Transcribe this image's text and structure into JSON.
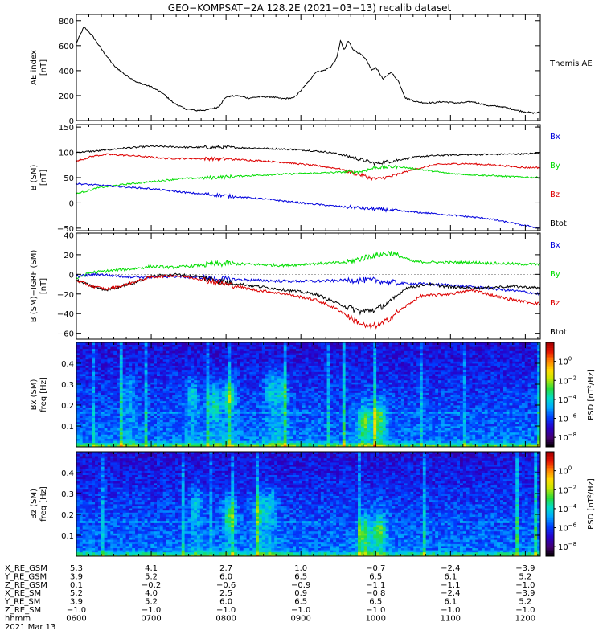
{
  "title": "GEO−KOMPSAT−2A 128.2E (2021−03−13) recalib dataset",
  "colors": {
    "bx": "#0000dd",
    "by": "#00dd00",
    "bz": "#dd0000",
    "btot": "#000000"
  },
  "chart_data": [
    {
      "type": "line",
      "ylabel_lines": [
        "AE index",
        "[nT]"
      ],
      "ylim": [
        0,
        850
      ],
      "yticks": [
        0,
        200,
        400,
        600,
        800
      ],
      "xlim": [
        6.0,
        12.2
      ],
      "legend": [
        {
          "label": "Themis AE",
          "color": "#000000"
        }
      ],
      "series": [
        {
          "name": "Themis AE",
          "color": "#000000",
          "x": [
            6.0,
            6.1,
            6.2,
            6.35,
            6.5,
            6.65,
            6.8,
            7.0,
            7.15,
            7.3,
            7.45,
            7.6,
            7.75,
            7.9,
            8.0,
            8.15,
            8.3,
            8.45,
            8.6,
            8.75,
            8.9,
            9.0,
            9.1,
            9.2,
            9.3,
            9.4,
            9.48,
            9.53,
            9.58,
            9.63,
            9.7,
            9.8,
            9.88,
            9.95,
            10.0,
            10.1,
            10.2,
            10.3,
            10.4,
            10.55,
            10.7,
            10.9,
            11.1,
            11.3,
            11.5,
            11.7,
            11.9,
            12.1,
            12.2
          ],
          "y": [
            620,
            750,
            690,
            560,
            440,
            370,
            310,
            270,
            220,
            140,
            95,
            80,
            85,
            110,
            190,
            200,
            180,
            190,
            190,
            175,
            180,
            240,
            310,
            390,
            400,
            430,
            500,
            640,
            560,
            640,
            570,
            530,
            480,
            400,
            430,
            330,
            390,
            320,
            180,
            150,
            140,
            150,
            140,
            150,
            120,
            110,
            80,
            60,
            65
          ]
        }
      ]
    },
    {
      "type": "line",
      "ylabel_lines": [
        "B (SM)",
        "[nT]"
      ],
      "ylim": [
        -55,
        155
      ],
      "yticks": [
        -50,
        0,
        50,
        100,
        150
      ],
      "xlim": [
        6.0,
        12.2
      ],
      "legend": [
        {
          "label": "Bx",
          "color": "#0000dd"
        },
        {
          "label": "By",
          "color": "#00dd00"
        },
        {
          "label": "Bz",
          "color": "#dd0000"
        },
        {
          "label": "Btot",
          "color": "#000000"
        }
      ],
      "series": [
        {
          "name": "Btot",
          "color": "#000000",
          "x": [
            6.0,
            6.3,
            6.6,
            7.0,
            7.5,
            8.0,
            8.5,
            9.0,
            9.4,
            9.7,
            10.0,
            10.3,
            10.6,
            11.0,
            11.5,
            12.0,
            12.2
          ],
          "y": [
            100,
            103,
            108,
            112,
            110,
            110,
            108,
            105,
            100,
            90,
            78,
            85,
            92,
            95,
            96,
            97,
            99
          ]
        },
        {
          "name": "Bz",
          "color": "#dd0000",
          "x": [
            6.0,
            6.2,
            6.4,
            6.8,
            7.2,
            7.6,
            8.0,
            8.4,
            8.8,
            9.2,
            9.5,
            9.8,
            10.0,
            10.2,
            10.5,
            10.8,
            11.2,
            11.6,
            12.0,
            12.2
          ],
          "y": [
            82,
            92,
            96,
            93,
            88,
            88,
            87,
            84,
            80,
            74,
            68,
            55,
            47,
            52,
            66,
            76,
            78,
            75,
            70,
            70
          ]
        },
        {
          "name": "By",
          "color": "#00dd00",
          "x": [
            6.0,
            6.3,
            6.6,
            7.0,
            7.4,
            7.8,
            8.2,
            8.6,
            9.0,
            9.4,
            9.8,
            10.0,
            10.3,
            10.6,
            11.0,
            11.4,
            11.8,
            12.2
          ],
          "y": [
            18,
            30,
            36,
            42,
            48,
            50,
            53,
            56,
            58,
            60,
            62,
            70,
            72,
            66,
            58,
            55,
            52,
            50
          ]
        },
        {
          "name": "Bx",
          "color": "#0000dd",
          "x": [
            6.0,
            6.5,
            7.0,
            7.5,
            8.0,
            8.5,
            9.0,
            9.5,
            10.0,
            10.5,
            11.0,
            11.5,
            12.0,
            12.2
          ],
          "y": [
            38,
            33,
            28,
            20,
            14,
            8,
            0,
            -7,
            -12,
            -18,
            -24,
            -31,
            -45,
            -50
          ]
        }
      ]
    },
    {
      "type": "line",
      "ylabel_lines": [
        "B (SM)−IGRF (SM)",
        "[nT]"
      ],
      "ylim": [
        -66,
        42
      ],
      "yticks": [
        -60,
        -40,
        -20,
        0,
        20,
        40
      ],
      "xlim": [
        6.0,
        12.2
      ],
      "legend": [
        {
          "label": "Bx",
          "color": "#0000dd"
        },
        {
          "label": "By",
          "color": "#00dd00"
        },
        {
          "label": "Bz",
          "color": "#dd0000"
        },
        {
          "label": "Btot",
          "color": "#000000"
        }
      ],
      "series": [
        {
          "name": "By",
          "color": "#00dd00",
          "x": [
            6.0,
            6.2,
            6.5,
            6.8,
            7.0,
            7.3,
            7.6,
            8.0,
            8.4,
            8.8,
            9.2,
            9.6,
            9.9,
            10.2,
            10.5,
            10.9,
            11.3,
            11.7,
            12.2
          ],
          "y": [
            -4,
            2,
            4,
            6,
            8,
            7,
            9,
            11,
            10,
            9,
            11,
            12,
            18,
            22,
            13,
            12,
            12,
            11,
            10
          ]
        },
        {
          "name": "Bx",
          "color": "#0000dd",
          "x": [
            6.0,
            6.3,
            6.6,
            7.0,
            7.3,
            7.6,
            8.0,
            8.4,
            8.8,
            9.2,
            9.6,
            10.0,
            10.3,
            10.7,
            11.0,
            11.5,
            12.0,
            12.2
          ],
          "y": [
            -2,
            0,
            -2,
            -3,
            -2,
            -3,
            -5,
            -6,
            -7,
            -7,
            -6,
            -6,
            -9,
            -10,
            -11,
            -14,
            -18,
            -20
          ]
        },
        {
          "name": "Btot",
          "color": "#000000",
          "x": [
            6.0,
            6.2,
            6.4,
            6.6,
            6.8,
            7.0,
            7.3,
            7.6,
            8.0,
            8.4,
            8.8,
            9.2,
            9.5,
            9.8,
            10.0,
            10.2,
            10.4,
            10.7,
            11.0,
            11.4,
            11.8,
            12.2
          ],
          "y": [
            -6,
            -12,
            -16,
            -12,
            -8,
            -2,
            0,
            -2,
            -8,
            -12,
            -16,
            -20,
            -30,
            -38,
            -36,
            -28,
            -14,
            -10,
            -13,
            -14,
            -12,
            -14
          ]
        },
        {
          "name": "Bz",
          "color": "#dd0000",
          "x": [
            6.0,
            6.2,
            6.4,
            6.6,
            6.8,
            7.0,
            7.3,
            7.6,
            8.0,
            8.4,
            8.8,
            9.2,
            9.5,
            9.7,
            9.9,
            10.1,
            10.3,
            10.6,
            11.0,
            11.3,
            11.7,
            12.0,
            12.2
          ],
          "y": [
            -6,
            -12,
            -15,
            -12,
            -7,
            -3,
            -1,
            -4,
            -10,
            -16,
            -20,
            -26,
            -36,
            -46,
            -54,
            -50,
            -38,
            -22,
            -20,
            -16,
            -24,
            -28,
            -30
          ]
        }
      ]
    },
    {
      "type": "heatmap",
      "ylabel_lines": [
        "Bx (SM)",
        "freq [Hz]"
      ],
      "ylim": [
        0.0,
        0.5
      ],
      "yticks": [
        0.1,
        0.2,
        0.3,
        0.4
      ],
      "xlim": [
        6.0,
        12.2
      ],
      "colorbar": {
        "label": "PSD [nT²/Hz]",
        "min_exp": -9,
        "max_exp": 2,
        "tick_exps": [
          0,
          -2,
          -4,
          -6,
          -8
        ]
      },
      "enhancements": [
        {
          "t": 6.7,
          "f": 0.27,
          "amp": 1.2
        },
        {
          "t": 7.55,
          "f": 0.25,
          "amp": 1.6
        },
        {
          "t": 7.85,
          "f": 0.22,
          "amp": 2.0
        },
        {
          "t": 8.05,
          "f": 0.25,
          "amp": 2.5
        },
        {
          "t": 8.6,
          "f": 0.28,
          "amp": 1.8
        },
        {
          "t": 8.75,
          "f": 0.27,
          "amp": 1.8
        },
        {
          "t": 9.85,
          "f": 0.12,
          "amp": 2.5
        },
        {
          "t": 10.05,
          "f": 0.13,
          "amp": 2.5
        }
      ]
    },
    {
      "type": "heatmap",
      "ylabel_lines": [
        "Bz (SM)",
        "freq [Hz]"
      ],
      "ylim": [
        0.0,
        0.5
      ],
      "yticks": [
        0.1,
        0.2,
        0.3,
        0.4
      ],
      "xlim": [
        6.0,
        12.2
      ],
      "colorbar": {
        "label": "PSD [nT²/Hz]",
        "min_exp": -9,
        "max_exp": 2,
        "tick_exps": [
          0,
          -2,
          -4,
          -6,
          -8
        ]
      },
      "enhancements": [
        {
          "t": 7.6,
          "f": 0.25,
          "amp": 1.5
        },
        {
          "t": 8.05,
          "f": 0.2,
          "amp": 2.5
        },
        {
          "t": 8.45,
          "f": 0.22,
          "amp": 1.8
        },
        {
          "t": 8.6,
          "f": 0.25,
          "amp": 1.5
        },
        {
          "t": 9.85,
          "f": 0.1,
          "amp": 2.5
        },
        {
          "t": 10.05,
          "f": 0.12,
          "amp": 2.6
        }
      ]
    }
  ],
  "axis_rows": {
    "labels": [
      "X_RE_GSM",
      "Y_RE_GSM",
      "Z_RE_GSM",
      "X_RE_SM",
      "Y_RE_SM",
      "Z_RE_SM",
      "hhmm"
    ],
    "ticks": [
      6,
      7,
      8,
      9,
      10,
      11,
      12
    ],
    "values": [
      [
        "5.3",
        "4.1",
        "2.7",
        "1.0",
        "−0.7",
        "−2.4",
        "−3.9"
      ],
      [
        "3.9",
        "5.2",
        "6.0",
        "6.5",
        "6.5",
        "6.1",
        "5.2"
      ],
      [
        "0.1",
        "−0.2",
        "−0.6",
        "−0.9",
        "−1.1",
        "−1.1",
        "−1.0"
      ],
      [
        "5.2",
        "4.0",
        "2.5",
        "0.9",
        "−0.8",
        "−2.4",
        "−3.9"
      ],
      [
        "3.9",
        "5.2",
        "6.0",
        "6.5",
        "6.5",
        "6.1",
        "5.2"
      ],
      [
        "−1.0",
        "−1.0",
        "−1.0",
        "−1.0",
        "−1.0",
        "−1.0",
        "−1.0"
      ],
      [
        "0600",
        "0700",
        "0800",
        "0900",
        "1000",
        "1100",
        "1200"
      ]
    ],
    "date": "2021 Mar 13"
  }
}
